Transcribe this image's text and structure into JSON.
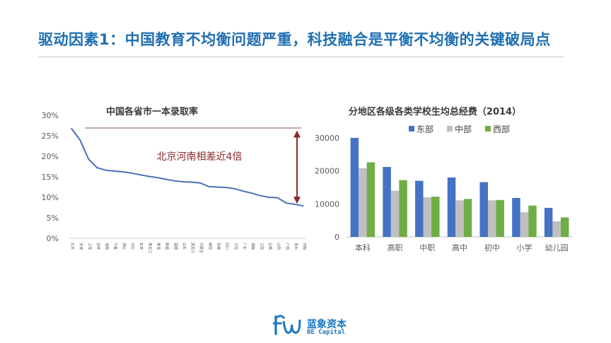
{
  "slide": {
    "title": "驱动因素1：中国教育不均衡问题严重，科技融合是平衡不均衡的关键破局点"
  },
  "brand": {
    "name_cn": "蓝象资本",
    "name_en": "BE Capital",
    "color": "#1a78c2"
  },
  "chart_data": [
    {
      "type": "line",
      "title": "中国各省市一本录取率",
      "ylim": [
        0,
        30
      ],
      "yticks": [
        "0%",
        "5%",
        "10%",
        "15%",
        "20%",
        "25%",
        "30%"
      ],
      "categories": [
        "北京",
        "天津",
        "上海",
        "吉林",
        "海南",
        "宁夏",
        "湖北",
        "河北",
        "甘肃",
        "黑龙江",
        "青海",
        "新疆",
        "福建",
        "山东",
        "黑龙江",
        "内蒙古",
        "陕西",
        "安徽",
        "四川",
        "江苏",
        "广东",
        "湖南",
        "江西",
        "云南",
        "山西",
        "广西",
        "贵州",
        "河南"
      ],
      "series": [
        {
          "color": "#4a6fb5",
          "values": [
            26.8,
            24.0,
            19.3,
            17.2,
            16.6,
            16.4,
            16.2,
            15.9,
            15.5,
            15.1,
            14.8,
            14.4,
            14.0,
            13.8,
            13.7,
            13.5,
            12.6,
            12.5,
            12.4,
            12.1,
            11.5,
            11.0,
            10.4,
            10.0,
            9.9,
            8.6,
            8.3,
            7.9
          ]
        }
      ],
      "annotation": {
        "text": "北京河南相差近4倍",
        "color": "#8b2a2a"
      }
    },
    {
      "type": "bar",
      "title": "分地区各级各类学校生均总经费（2014）",
      "ylim": [
        0,
        30000
      ],
      "yticks": [
        "0",
        "10000",
        "20000",
        "30000"
      ],
      "categories": [
        "本科",
        "高职",
        "中职",
        "高中",
        "初中",
        "小学",
        "幼儿园"
      ],
      "legend_position": "top",
      "series": [
        {
          "name": "东部",
          "color": "#4472c4",
          "values": [
            30000,
            21200,
            17000,
            18000,
            16600,
            11800,
            8800
          ]
        },
        {
          "name": "中部",
          "color": "#bfbfbf",
          "values": [
            20800,
            14000,
            12000,
            11100,
            11100,
            7500,
            4700
          ]
        },
        {
          "name": "西部",
          "color": "#70ad47",
          "values": [
            22600,
            17200,
            12200,
            11500,
            11200,
            9500,
            5900
          ]
        }
      ]
    }
  ]
}
